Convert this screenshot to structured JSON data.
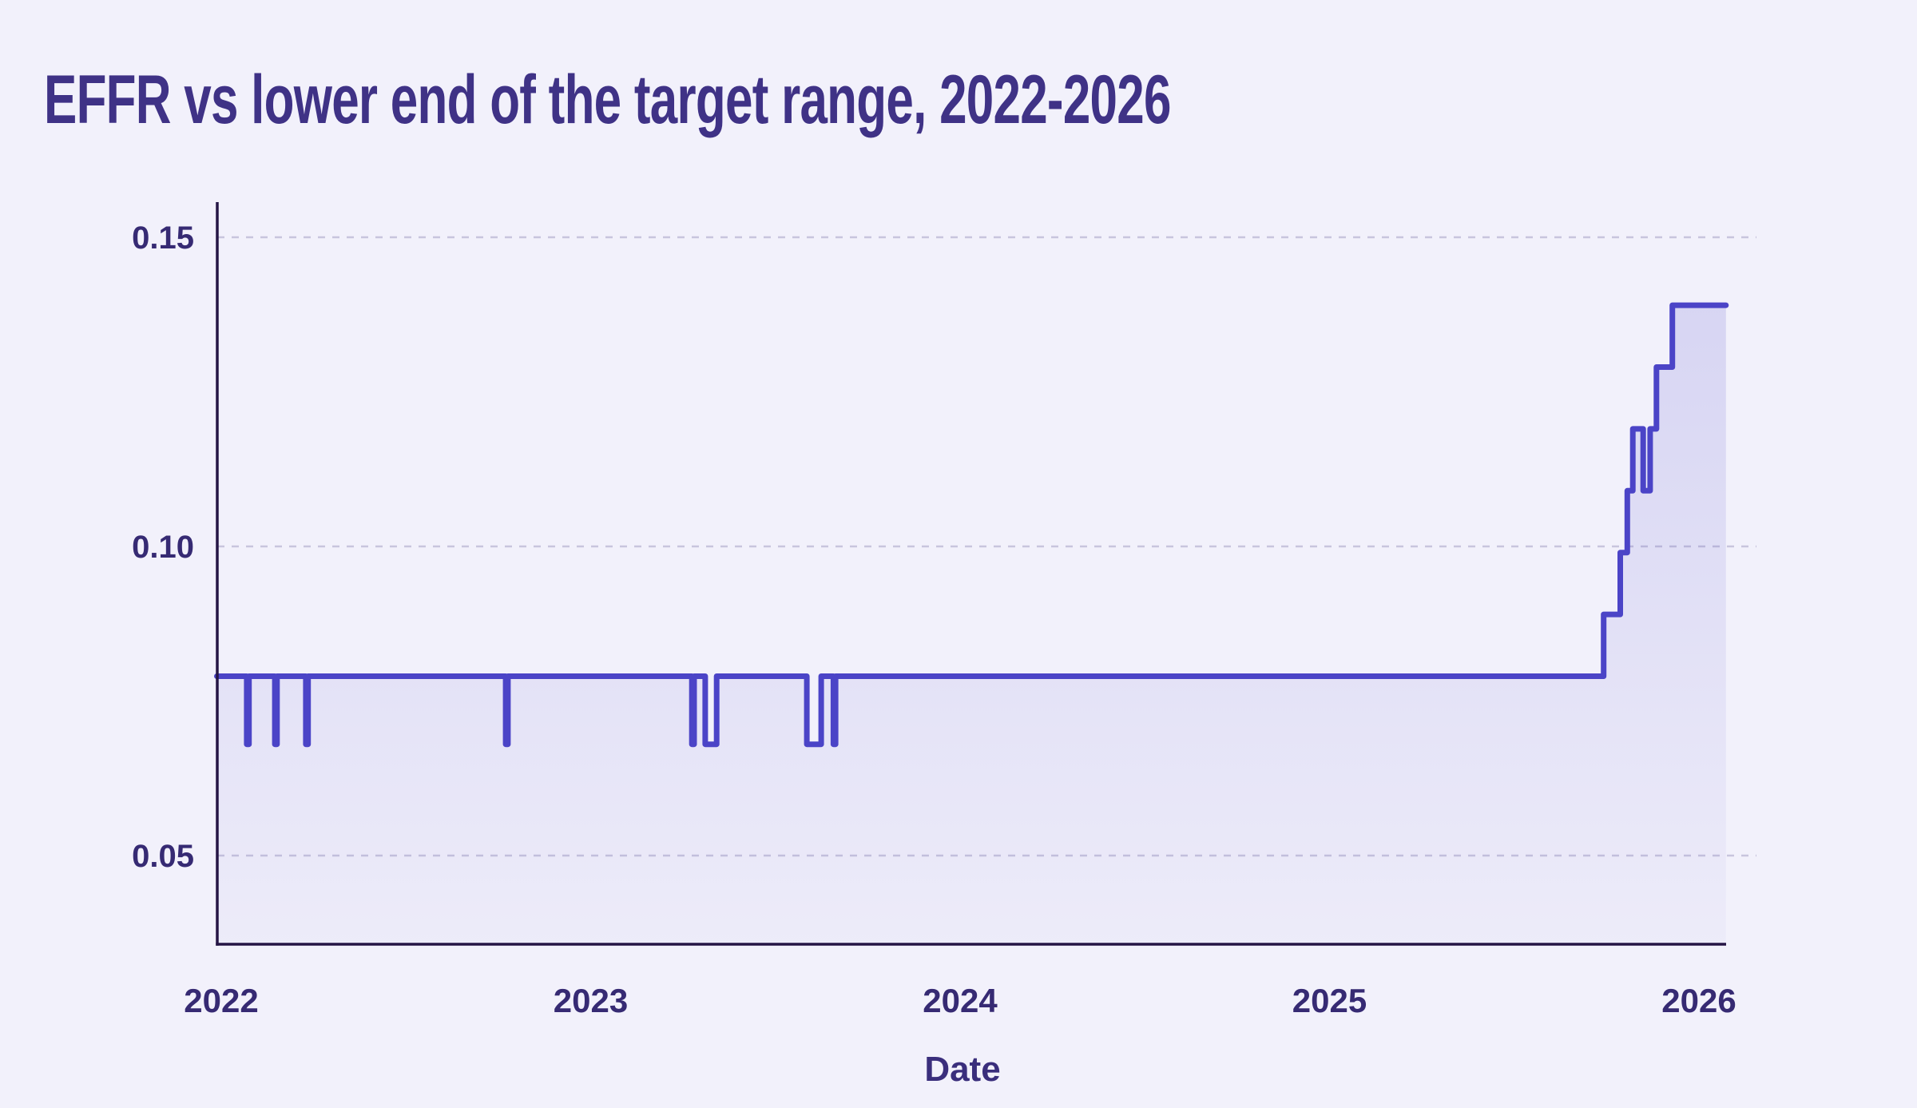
{
  "title": "EFFR vs lower end of the target range, 2022-2026",
  "x_axis": {
    "title": "Date"
  },
  "colors": {
    "background": "#f2f1fb",
    "title_text": "#3f3286",
    "tick_text": "#362a73",
    "axis_line": "#251545",
    "gridline": "#c8c5dd",
    "line": "#4b44c7",
    "fill_top": "rgba(75,68,199,0.16)",
    "fill_bottom": "rgba(75,68,199,0.03)"
  },
  "chart_data": {
    "type": "area",
    "title": "EFFR vs lower end of the target range, 2022-2026",
    "xlabel": "Date",
    "ylabel": "",
    "grid": "horizontal-dashed",
    "legend": "none",
    "xlim": [
      2021.988,
      2026.073
    ],
    "ylim": [
      0.036,
      0.156
    ],
    "x_ticks": [
      {
        "label": "2022",
        "value": 2022
      },
      {
        "label": "2023",
        "value": 2023
      },
      {
        "label": "2024",
        "value": 2024
      },
      {
        "label": "2025",
        "value": 2025
      },
      {
        "label": "2026",
        "value": 2026
      }
    ],
    "y_ticks": [
      {
        "label": "0.15",
        "value": 0.15
      },
      {
        "label": "0.10",
        "value": 0.1
      },
      {
        "label": "0.05",
        "value": 0.05
      }
    ],
    "series": [
      {
        "name": "EFFR vs lower end of the target range",
        "style": "step-line-with-area-fill",
        "baseline_value": 0.079,
        "dip_value": 0.068,
        "points": [
          [
            2021.988,
            0.079
          ],
          [
            2022.069,
            0.079
          ],
          [
            2022.069,
            0.068
          ],
          [
            2022.075,
            0.068
          ],
          [
            2022.075,
            0.079
          ],
          [
            2022.145,
            0.079
          ],
          [
            2022.145,
            0.068
          ],
          [
            2022.151,
            0.068
          ],
          [
            2022.151,
            0.079
          ],
          [
            2022.229,
            0.079
          ],
          [
            2022.229,
            0.068
          ],
          [
            2022.235,
            0.068
          ],
          [
            2022.235,
            0.079
          ],
          [
            2022.77,
            0.079
          ],
          [
            2022.77,
            0.068
          ],
          [
            2022.776,
            0.068
          ],
          [
            2022.776,
            0.079
          ],
          [
            2023.274,
            0.079
          ],
          [
            2023.274,
            0.068
          ],
          [
            2023.28,
            0.068
          ],
          [
            2023.28,
            0.079
          ],
          [
            2023.31,
            0.079
          ],
          [
            2023.31,
            0.068
          ],
          [
            2023.341,
            0.068
          ],
          [
            2023.341,
            0.079
          ],
          [
            2023.585,
            0.079
          ],
          [
            2023.585,
            0.068
          ],
          [
            2023.624,
            0.068
          ],
          [
            2023.624,
            0.079
          ],
          [
            2023.657,
            0.079
          ],
          [
            2023.657,
            0.068
          ],
          [
            2023.663,
            0.068
          ],
          [
            2023.663,
            0.079
          ],
          [
            2025.742,
            0.079
          ],
          [
            2025.742,
            0.089
          ],
          [
            2025.787,
            0.089
          ],
          [
            2025.787,
            0.099
          ],
          [
            2025.806,
            0.099
          ],
          [
            2025.806,
            0.109
          ],
          [
            2025.821,
            0.109
          ],
          [
            2025.821,
            0.119
          ],
          [
            2025.849,
            0.119
          ],
          [
            2025.849,
            0.109
          ],
          [
            2025.868,
            0.109
          ],
          [
            2025.868,
            0.119
          ],
          [
            2025.885,
            0.119
          ],
          [
            2025.885,
            0.129
          ],
          [
            2025.928,
            0.129
          ],
          [
            2025.928,
            0.139
          ],
          [
            2026.073,
            0.139
          ]
        ]
      }
    ]
  }
}
